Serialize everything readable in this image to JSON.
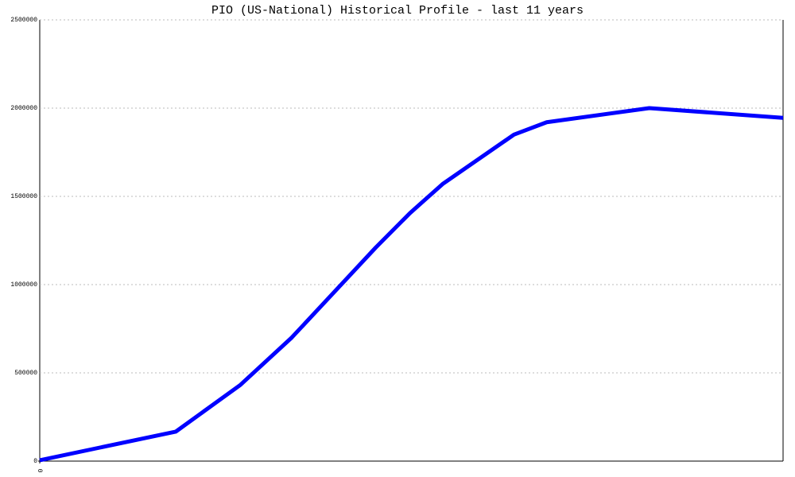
{
  "chart_data": {
    "type": "line",
    "title": "PIO (US-National) Historical Profile - last 11 years",
    "x": [
      0,
      183,
      270,
      339,
      452,
      498,
      542,
      638,
      682,
      820,
      1000
    ],
    "series": [
      {
        "color": "#0000ff",
        "values": [
          5000,
          167000,
          432000,
          700000,
          1210000,
          1405000,
          1570000,
          1850000,
          1920000,
          2000000,
          1945000
        ]
      }
    ],
    "xlim": [
      0,
      1000
    ],
    "xticks": [
      0
    ],
    "ylim": [
      0,
      2500000
    ],
    "yticks": [
      0,
      500000,
      1000000,
      1500000,
      2000000,
      2500000
    ],
    "grid": true
  }
}
